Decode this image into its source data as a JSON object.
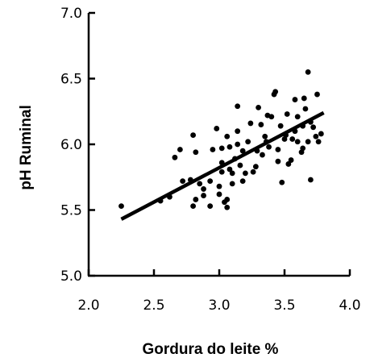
{
  "chart_data": {
    "type": "scatter",
    "title": "",
    "xlabel": "Gordura do leite %",
    "ylabel": "pH Ruminal",
    "xlim": [
      2.0,
      4.0
    ],
    "ylim": [
      5.0,
      7.0
    ],
    "x_ticks": [
      "2.0",
      "2.5",
      "3.0",
      "3.5",
      "4.0"
    ],
    "y_ticks": [
      "5.0",
      "5.5",
      "6.0",
      "6.5",
      "7.0"
    ],
    "grid": false,
    "legend": "none",
    "series": [
      {
        "points": [
          [
            2.25,
            5.53
          ],
          [
            2.55,
            5.57
          ],
          [
            2.62,
            5.6
          ],
          [
            2.66,
            5.9
          ],
          [
            2.7,
            5.96
          ],
          [
            2.72,
            5.72
          ],
          [
            2.78,
            5.73
          ],
          [
            2.8,
            6.07
          ],
          [
            2.82,
            5.94
          ],
          [
            2.8,
            5.53
          ],
          [
            2.82,
            5.58
          ],
          [
            2.85,
            5.7
          ],
          [
            2.88,
            5.66
          ],
          [
            2.88,
            5.61
          ],
          [
            2.93,
            5.53
          ],
          [
            2.93,
            5.72
          ],
          [
            2.95,
            5.96
          ],
          [
            2.98,
            6.12
          ],
          [
            3.0,
            5.62
          ],
          [
            3.0,
            5.68
          ],
          [
            3.02,
            5.79
          ],
          [
            3.02,
            5.86
          ],
          [
            3.02,
            5.97
          ],
          [
            3.04,
            5.56
          ],
          [
            3.06,
            5.58
          ],
          [
            3.06,
            5.52
          ],
          [
            3.06,
            6.06
          ],
          [
            3.08,
            5.81
          ],
          [
            3.08,
            5.98
          ],
          [
            3.1,
            5.78
          ],
          [
            3.1,
            5.7
          ],
          [
            3.12,
            5.89
          ],
          [
            3.14,
            6.1
          ],
          [
            3.14,
            6.29
          ],
          [
            3.14,
            6.0
          ],
          [
            3.16,
            5.84
          ],
          [
            3.18,
            5.72
          ],
          [
            3.18,
            5.95
          ],
          [
            3.2,
            5.78
          ],
          [
            3.22,
            6.02
          ],
          [
            3.24,
            6.16
          ],
          [
            3.26,
            5.79
          ],
          [
            3.28,
            5.83
          ],
          [
            3.29,
            5.95
          ],
          [
            3.3,
            6.28
          ],
          [
            3.32,
            6.15
          ],
          [
            3.33,
            5.92
          ],
          [
            3.35,
            6.06
          ],
          [
            3.36,
            6.02
          ],
          [
            3.37,
            6.22
          ],
          [
            3.38,
            5.98
          ],
          [
            3.4,
            6.21
          ],
          [
            3.42,
            6.38
          ],
          [
            3.43,
            6.4
          ],
          [
            3.45,
            5.87
          ],
          [
            3.45,
            5.96
          ],
          [
            3.47,
            6.14
          ],
          [
            3.48,
            5.71
          ],
          [
            3.5,
            6.04
          ],
          [
            3.51,
            6.07
          ],
          [
            3.52,
            6.23
          ],
          [
            3.53,
            5.85
          ],
          [
            3.55,
            5.88
          ],
          [
            3.56,
            6.04
          ],
          [
            3.58,
            6.1
          ],
          [
            3.58,
            6.34
          ],
          [
            3.6,
            6.02
          ],
          [
            3.6,
            6.21
          ],
          [
            3.63,
            5.94
          ],
          [
            3.64,
            5.97
          ],
          [
            3.64,
            6.14
          ],
          [
            3.65,
            6.35
          ],
          [
            3.66,
            6.27
          ],
          [
            3.68,
            6.02
          ],
          [
            3.68,
            6.55
          ],
          [
            3.7,
            6.17
          ],
          [
            3.7,
            5.73
          ],
          [
            3.72,
            6.13
          ],
          [
            3.74,
            6.06
          ],
          [
            3.75,
            6.38
          ],
          [
            3.76,
            6.02
          ],
          [
            3.78,
            6.08
          ]
        ]
      }
    ],
    "trendline": {
      "x": [
        2.25,
        3.8
      ],
      "y": [
        5.43,
        6.24
      ]
    }
  }
}
